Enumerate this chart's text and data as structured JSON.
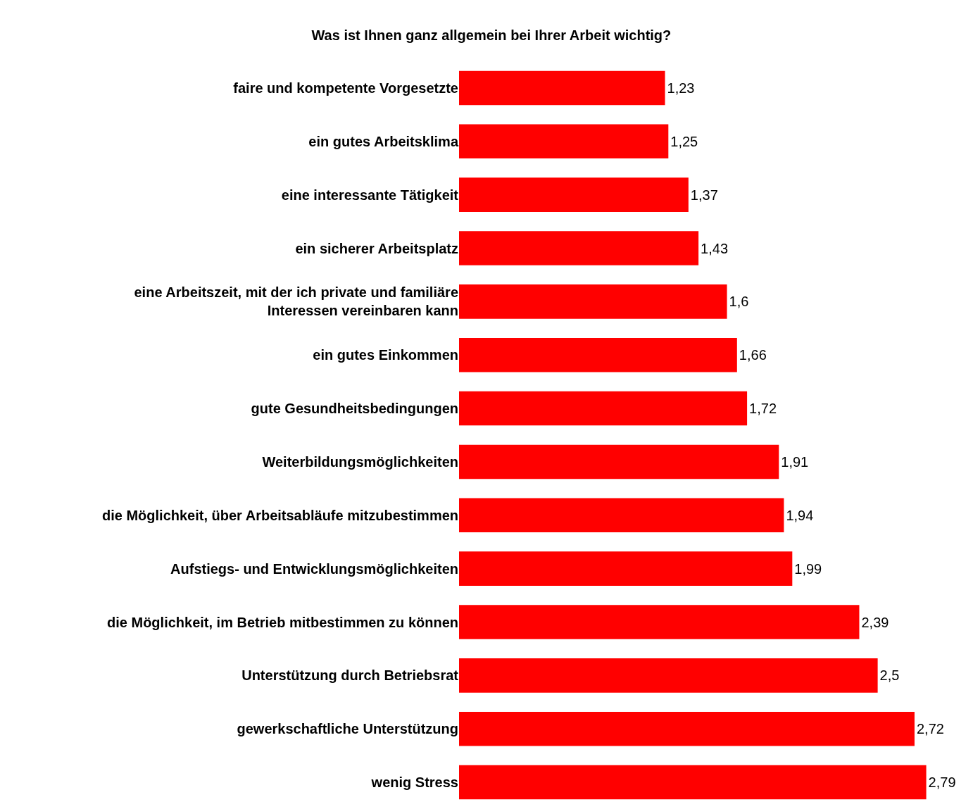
{
  "chart_data": {
    "type": "bar",
    "orientation": "horizontal",
    "title": "Was ist Ihnen ganz allgemein bei Ihrer Arbeit wichtig?",
    "categories": [
      "faire und kompetente Vorgesetzte",
      "ein gutes Arbeitsklima",
      "eine interessante Tätigkeit",
      "ein sicherer Arbeitsplatz",
      "eine Arbeitszeit, mit der ich private und familiäre Interessen vereinbaren kann",
      "ein gutes Einkommen",
      "gute Gesundheitsbedingungen",
      "Weiterbildungsmöglichkeiten",
      "die Möglichkeit, über Arbeitsabläufe mitzubestimmen",
      "Aufstiegs- und Entwicklungsmöglichkeiten",
      "die Möglichkeit, im Betrieb mitbestimmen zu können",
      "Unterstützung durch Betriebsrat",
      "gewerkschaftliche Unterstützung",
      "wenig Stress"
    ],
    "values": [
      1.23,
      1.25,
      1.37,
      1.43,
      1.6,
      1.66,
      1.72,
      1.91,
      1.94,
      1.99,
      2.39,
      2.5,
      2.72,
      2.79
    ],
    "value_labels": [
      "1,23",
      "1,25",
      "1,37",
      "1,43",
      "1,6",
      "1,66",
      "1,72",
      "1,91",
      "1,94",
      "1,99",
      "2,39",
      "2,5",
      "2,72",
      "2,79"
    ],
    "color": "#ff0000",
    "grid": false,
    "legend": false
  }
}
